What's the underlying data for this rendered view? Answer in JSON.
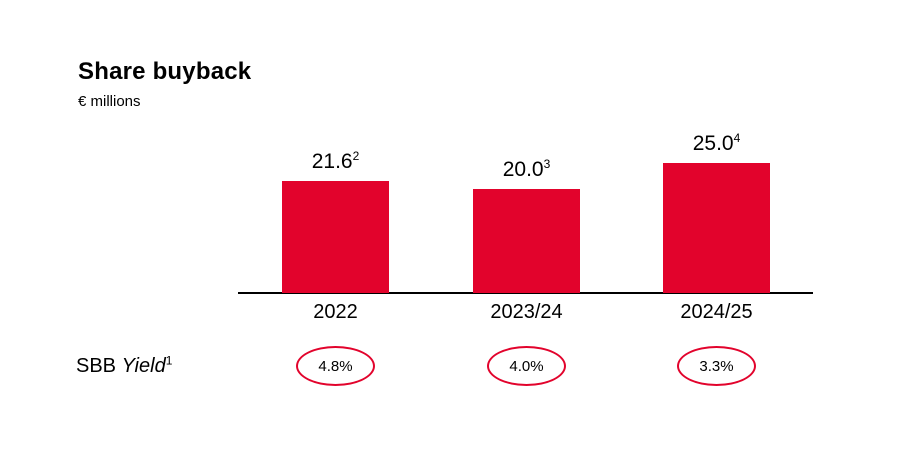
{
  "chart_data": {
    "type": "bar",
    "title": "Share buyback",
    "unit_label": "€ millions",
    "categories": [
      "2022",
      "2023/24",
      "2024/25"
    ],
    "values": [
      21.6,
      20.0,
      25.0
    ],
    "value_labels": [
      {
        "text": "21.6",
        "footnote": "2"
      },
      {
        "text": "20.0",
        "footnote": "3"
      },
      {
        "text": "25.0",
        "footnote": "4"
      }
    ],
    "yield_row": {
      "label_prefix": "SBB ",
      "label_italic": "Yield",
      "footnote": "1",
      "values": [
        "4.8%",
        "4.0%",
        "3.3%"
      ]
    },
    "layout_hints": {
      "grid": "off",
      "y_axis": "hidden",
      "legend": "none",
      "baseline": "solid black line"
    },
    "colors": {
      "bar": "#e2032c",
      "circle_stroke": "#e2032c",
      "text": "#000000",
      "axis": "#000000",
      "background": "#ffffff"
    }
  }
}
